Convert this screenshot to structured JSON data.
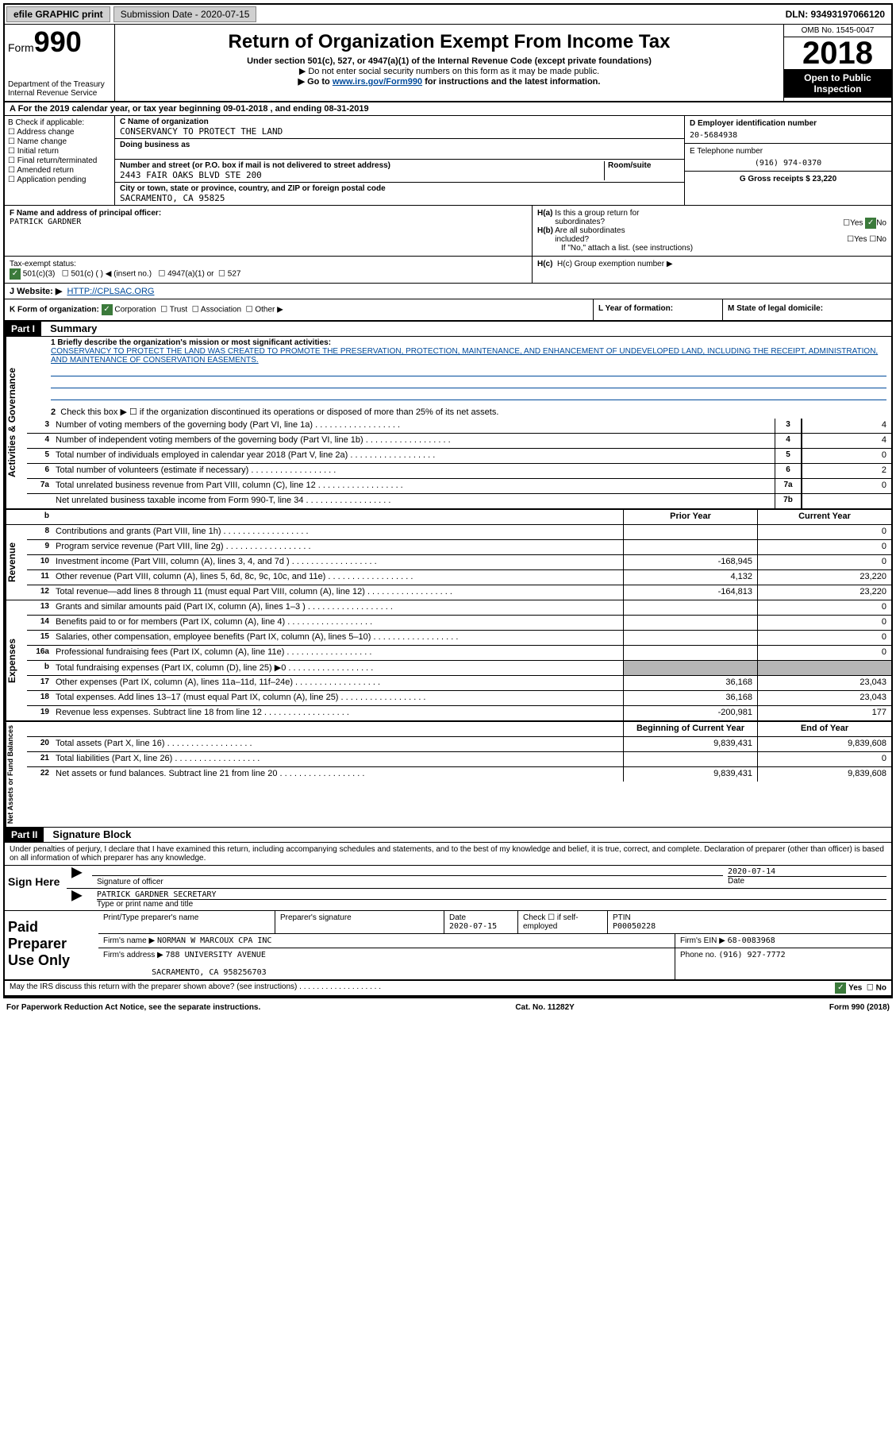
{
  "topbar": {
    "efile": "efile GRAPHIC print",
    "sub_date_label": "Submission Date - 2020-07-15",
    "dln": "DLN: 93493197066120"
  },
  "header": {
    "form_label": "Form",
    "form_num": "990",
    "dept": "Department of the Treasury",
    "irs": "Internal Revenue Service",
    "title": "Return of Organization Exempt From Income Tax",
    "sub1": "Under section 501(c), 527, or 4947(a)(1) of the Internal Revenue Code (except private foundations)",
    "sub2": "▶ Do not enter social security numbers on this form as it may be made public.",
    "sub3_pre": "▶ Go to ",
    "sub3_link": "www.irs.gov/Form990",
    "sub3_post": " for instructions and the latest information.",
    "omb": "OMB No. 1545-0047",
    "year": "2018",
    "open": "Open to Public Inspection"
  },
  "period": "A For the 2019 calendar year, or tax year beginning 09-01-2018   , and ending 08-31-2019",
  "section_b": {
    "check_label": "B Check if applicable:",
    "addr_change": "Address change",
    "name_change": "Name change",
    "initial": "Initial return",
    "final": "Final return/terminated",
    "amended": "Amended return",
    "app_pending": "Application pending",
    "c_label": "C Name of organization",
    "c_name": "CONSERVANCY TO PROTECT THE LAND",
    "dba_label": "Doing business as",
    "addr_label": "Number and street (or P.O. box if mail is not delivered to street address)",
    "room_label": "Room/suite",
    "addr": "2443 FAIR OAKS BLVD STE 200",
    "city_label": "City or town, state or province, country, and ZIP or foreign postal code",
    "city": "SACRAMENTO, CA  95825",
    "d_label": "D Employer identification number",
    "d_val": "20-5684938",
    "e_label": "E Telephone number",
    "e_val": "(916) 974-0370",
    "g_label": "G Gross receipts $ 23,220"
  },
  "principal": {
    "f_label": "F  Name and address of principal officer:",
    "f_name": "PATRICK GARDNER",
    "ha_label": "H(a)  Is this a group return for subordinates?",
    "hb_label": "H(b)  Are all subordinates included?",
    "hb_note": "If \"No,\" attach a list. (see instructions)",
    "hc_label": "H(c)  Group exemption number ▶",
    "yes": "Yes",
    "no": "No"
  },
  "tax_exempt": {
    "label": "Tax-exempt status:",
    "c3": "501(c)(3)",
    "c_insert": "501(c) (  ) ◀ (insert no.)",
    "a1": "4947(a)(1) or",
    "s527": "527"
  },
  "website": {
    "label": "J Website: ▶",
    "url": "HTTP://CPLSAC.ORG"
  },
  "form_org": {
    "k": "K Form of organization:",
    "corp": "Corporation",
    "trust": "Trust",
    "assoc": "Association",
    "other": "Other ▶",
    "l": "L Year of formation:",
    "m": "M State of legal domicile:"
  },
  "part1": {
    "header": "Part I",
    "title": "Summary",
    "line1_label": "1  Briefly describe the organization's mission or most significant activities:",
    "mission": "CONSERVANCY TO PROTECT THE LAND WAS CREATED TO PROMOTE THE PRESERVATION, PROTECTION, MAINTENANCE, AND ENHANCEMENT OF UNDEVELOPED LAND, INCLUDING THE RECEIPT, ADMINISTRATION, AND MAINTENANCE OF CONSERVATION EASEMENTS.",
    "line2": "Check this box ▶ ☐  if the organization discontinued its operations or disposed of more than 25% of its net assets.",
    "lines_ag": [
      {
        "n": "3",
        "d": "Number of voting members of the governing body (Part VI, line 1a)",
        "box": "3",
        "v": "4"
      },
      {
        "n": "4",
        "d": "Number of independent voting members of the governing body (Part VI, line 1b)",
        "box": "4",
        "v": "4"
      },
      {
        "n": "5",
        "d": "Total number of individuals employed in calendar year 2018 (Part V, line 2a)",
        "box": "5",
        "v": "0"
      },
      {
        "n": "6",
        "d": "Total number of volunteers (estimate if necessary)",
        "box": "6",
        "v": "2"
      },
      {
        "n": "7a",
        "d": "Total unrelated business revenue from Part VIII, column (C), line 12",
        "box": "7a",
        "v": "0"
      },
      {
        "n": "",
        "d": "Net unrelated business taxable income from Form 990-T, line 34",
        "box": "7b",
        "v": ""
      }
    ],
    "col_prior": "Prior Year",
    "col_curr": "Current Year",
    "revenue": [
      {
        "n": "8",
        "d": "Contributions and grants (Part VIII, line 1h)",
        "p": "",
        "c": "0"
      },
      {
        "n": "9",
        "d": "Program service revenue (Part VIII, line 2g)",
        "p": "",
        "c": "0"
      },
      {
        "n": "10",
        "d": "Investment income (Part VIII, column (A), lines 3, 4, and 7d )",
        "p": "-168,945",
        "c": "0"
      },
      {
        "n": "11",
        "d": "Other revenue (Part VIII, column (A), lines 5, 6d, 8c, 9c, 10c, and 11e)",
        "p": "4,132",
        "c": "23,220"
      },
      {
        "n": "12",
        "d": "Total revenue—add lines 8 through 11 (must equal Part VIII, column (A), line 12)",
        "p": "-164,813",
        "c": "23,220"
      }
    ],
    "expenses": [
      {
        "n": "13",
        "d": "Grants and similar amounts paid (Part IX, column (A), lines 1–3 )",
        "p": "",
        "c": "0"
      },
      {
        "n": "14",
        "d": "Benefits paid to or for members (Part IX, column (A), line 4)",
        "p": "",
        "c": "0"
      },
      {
        "n": "15",
        "d": "Salaries, other compensation, employee benefits (Part IX, column (A), lines 5–10)",
        "p": "",
        "c": "0"
      },
      {
        "n": "16a",
        "d": "Professional fundraising fees (Part IX, column (A), line 11e)",
        "p": "",
        "c": "0"
      },
      {
        "n": "b",
        "d": "Total fundraising expenses (Part IX, column (D), line 25) ▶0",
        "p": "__shaded__",
        "c": "__shaded__"
      },
      {
        "n": "17",
        "d": "Other expenses (Part IX, column (A), lines 11a–11d, 11f–24e)",
        "p": "36,168",
        "c": "23,043"
      },
      {
        "n": "18",
        "d": "Total expenses. Add lines 13–17 (must equal Part IX, column (A), line 25)",
        "p": "36,168",
        "c": "23,043"
      },
      {
        "n": "19",
        "d": "Revenue less expenses. Subtract line 18 from line 12",
        "p": "-200,981",
        "c": "177"
      }
    ],
    "col_begin": "Beginning of Current Year",
    "col_end": "End of Year",
    "netassets": [
      {
        "n": "20",
        "d": "Total assets (Part X, line 16)",
        "p": "9,839,431",
        "c": "9,839,608"
      },
      {
        "n": "21",
        "d": "Total liabilities (Part X, line 26)",
        "p": "",
        "c": "0"
      },
      {
        "n": "22",
        "d": "Net assets or fund balances. Subtract line 21 from line 20",
        "p": "9,839,431",
        "c": "9,839,608"
      }
    ],
    "side_ag": "Activities & Governance",
    "side_rev": "Revenue",
    "side_exp": "Expenses",
    "side_na": "Net Assets or Fund Balances"
  },
  "part2": {
    "header": "Part II",
    "title": "Signature Block",
    "declare": "Under penalties of perjury, I declare that I have examined this return, including accompanying schedules and statements, and to the best of my knowledge and belief, it is true, correct, and complete. Declaration of preparer (other than officer) is based on all information of which preparer has any knowledge.",
    "sign_here": "Sign Here",
    "sig_officer": "Signature of officer",
    "date": "Date",
    "date_val": "2020-07-14",
    "officer_name": "PATRICK GARDNER  SECRETARY",
    "type_name": "Type or print name and title",
    "paid_prep": "Paid Preparer Use Only",
    "prep_name_label": "Print/Type preparer's name",
    "prep_sig_label": "Preparer's signature",
    "prep_date": "2020-07-15",
    "check_self": "Check ☐ if self-employed",
    "ptin_label": "PTIN",
    "ptin": "P00050228",
    "firm_name_label": "Firm's name    ▶",
    "firm_name": "NORMAN W MARCOUX CPA INC",
    "firm_ein_label": "Firm's EIN ▶",
    "firm_ein": "68-0083968",
    "firm_addr_label": "Firm's address ▶",
    "firm_addr1": "788 UNIVERSITY AVENUE",
    "firm_addr2": "SACRAMENTO, CA  958256703",
    "phone_label": "Phone no.",
    "phone": "(916) 927-7772",
    "may_discuss": "May the IRS discuss this return with the preparer shown above? (see instructions)"
  },
  "footer": {
    "pra": "For Paperwork Reduction Act Notice, see the separate instructions.",
    "cat": "Cat. No. 11282Y",
    "form": "Form 990 (2018)"
  }
}
